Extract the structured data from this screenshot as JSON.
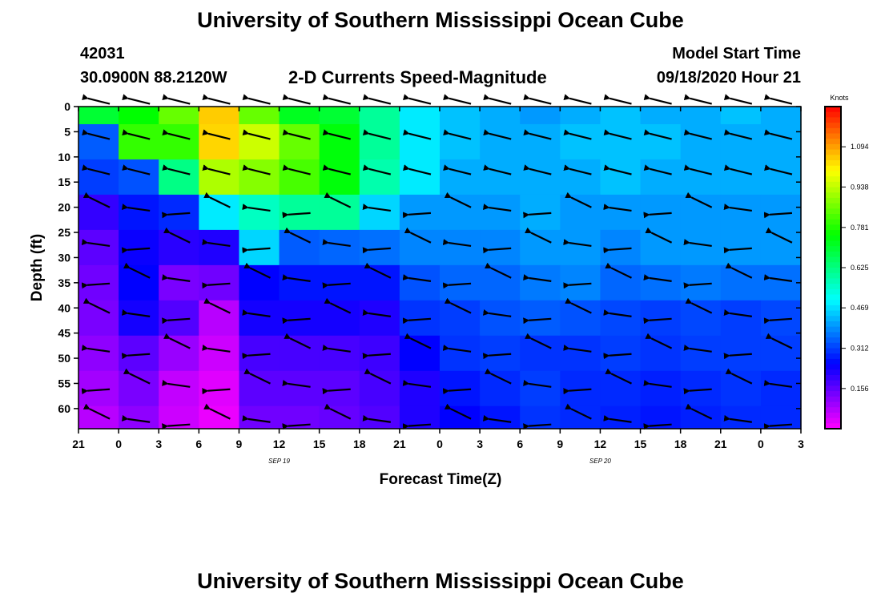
{
  "header": {
    "title_top": "University of Southern Mississippi Ocean Cube",
    "title_bottom": "University of Southern Mississippi Ocean Cube",
    "station_id": "42031",
    "station_coords": "30.0900N 88.2120W",
    "plot_title": "2-D Currents Speed-Magnitude",
    "model_start_label": "Model Start Time",
    "model_start_value": "09/18/2020 Hour 21"
  },
  "chart_data": {
    "type": "heatmap",
    "title": "2-D Currents Speed-Magnitude",
    "xlabel": "Forecast Time(Z)",
    "ylabel": "Depth (ft)",
    "x_tick_labels": [
      "21",
      "0",
      "3",
      "6",
      "9",
      "12",
      "15",
      "18",
      "21",
      "0",
      "3",
      "6",
      "9",
      "12",
      "15",
      "18",
      "21",
      "0",
      "3"
    ],
    "x_range_hours": [
      0,
      54
    ],
    "date_labels": [
      {
        "text": "SEP 19",
        "hour": 15
      },
      {
        "text": "SEP 20",
        "hour": 39
      }
    ],
    "y_ticks": [
      0,
      5,
      10,
      15,
      20,
      25,
      30,
      35,
      40,
      45,
      50,
      55,
      60
    ],
    "ylim": [
      0,
      64
    ],
    "colorbar": {
      "label": "Knots",
      "ticks": [
        "1.094",
        "0.938",
        "0.781",
        "0.625",
        "0.469",
        "0.312",
        "0.156"
      ],
      "tick_values": [
        1.094,
        0.938,
        0.781,
        0.625,
        0.469,
        0.312,
        0.156
      ],
      "range": [
        0.0,
        1.25
      ]
    },
    "grid": false,
    "vector_times_hours": [
      1.5,
      4.5,
      7.5,
      10.5,
      13.5,
      16.5,
      19.5,
      22.5,
      25.5,
      28.5,
      31.5,
      34.5,
      37.5,
      40.5,
      43.5,
      46.5,
      49.5,
      52.5
    ],
    "vector_depths_ft": [
      0,
      7,
      14,
      21,
      28,
      35,
      42,
      49,
      56,
      63
    ],
    "speed_knots": [
      [
        0.7,
        0.75,
        0.85,
        1.05,
        0.85,
        0.72,
        0.7,
        0.6,
        0.48,
        0.44,
        0.42,
        0.4,
        0.42,
        0.44,
        0.42,
        0.42,
        0.44,
        0.42
      ],
      [
        0.34,
        0.8,
        0.8,
        1.04,
        0.95,
        0.85,
        0.74,
        0.6,
        0.48,
        0.44,
        0.42,
        0.42,
        0.44,
        0.44,
        0.44,
        0.42,
        0.42,
        0.42
      ],
      [
        0.31,
        0.33,
        0.62,
        0.92,
        0.88,
        0.82,
        0.74,
        0.58,
        0.48,
        0.42,
        0.42,
        0.42,
        0.42,
        0.44,
        0.42,
        0.42,
        0.42,
        0.42
      ],
      [
        0.2,
        0.27,
        0.29,
        0.48,
        0.56,
        0.6,
        0.6,
        0.46,
        0.4,
        0.4,
        0.4,
        0.42,
        0.4,
        0.4,
        0.4,
        0.4,
        0.4,
        0.4
      ],
      [
        0.16,
        0.24,
        0.21,
        0.22,
        0.46,
        0.34,
        0.35,
        0.36,
        0.38,
        0.38,
        0.38,
        0.4,
        0.4,
        0.38,
        0.4,
        0.4,
        0.4,
        0.4
      ],
      [
        0.14,
        0.25,
        0.13,
        0.14,
        0.25,
        0.27,
        0.27,
        0.27,
        0.33,
        0.35,
        0.35,
        0.37,
        0.38,
        0.35,
        0.36,
        0.37,
        0.36,
        0.36
      ],
      [
        0.13,
        0.23,
        0.17,
        0.07,
        0.23,
        0.23,
        0.23,
        0.22,
        0.3,
        0.31,
        0.33,
        0.34,
        0.33,
        0.32,
        0.31,
        0.32,
        0.31,
        0.32
      ],
      [
        0.11,
        0.16,
        0.1,
        0.05,
        0.18,
        0.18,
        0.18,
        0.19,
        0.25,
        0.3,
        0.31,
        0.3,
        0.3,
        0.31,
        0.3,
        0.31,
        0.31,
        0.31
      ],
      [
        0.09,
        0.13,
        0.06,
        0.03,
        0.16,
        0.16,
        0.16,
        0.18,
        0.22,
        0.27,
        0.29,
        0.31,
        0.29,
        0.29,
        0.28,
        0.29,
        0.3,
        0.29
      ],
      [
        0.07,
        0.11,
        0.05,
        0.02,
        0.14,
        0.14,
        0.15,
        0.17,
        0.22,
        0.25,
        0.27,
        0.3,
        0.29,
        0.28,
        0.27,
        0.28,
        0.29,
        0.29
      ]
    ]
  }
}
